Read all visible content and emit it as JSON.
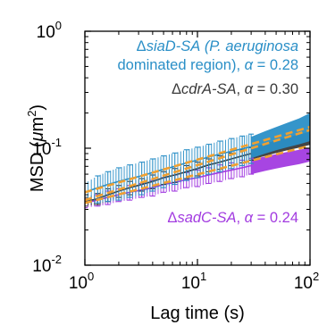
{
  "chart_data": {
    "type": "line",
    "x_scale": "log",
    "y_scale": "log",
    "xlim": [
      1,
      100
    ],
    "ylim": [
      0.01,
      1
    ],
    "xlabel": "Lag time (s)",
    "ylabel": "MSD (μm²)",
    "ylabel_parts": {
      "text": "MSD (",
      "mu": "μ",
      "unit": "m",
      "exp": "2",
      "close": ")"
    },
    "x_ticks": [
      {
        "value": 1,
        "base": "10",
        "exp": "0"
      },
      {
        "value": 10,
        "base": "10",
        "exp": "1"
      },
      {
        "value": 100,
        "base": "10",
        "exp": "2"
      }
    ],
    "y_ticks": [
      {
        "value": 0.01,
        "base": "10",
        "exp": "-2"
      },
      {
        "value": 0.1,
        "base": "10",
        "exp": "-1"
      },
      {
        "value": 1,
        "base": "10",
        "exp": "0"
      }
    ],
    "grid": false,
    "series": [
      {
        "name": "ΔsiaD-SA (P. aeruginosa dominated region)",
        "alpha": "α = 0.28",
        "color": "#2a8fc7",
        "fit_color": "#f0a030",
        "x": [
          1.0,
          1.3,
          1.6,
          2.0,
          2.5,
          3.2,
          4.0,
          5.0,
          6.3,
          8.0,
          10.0,
          12.6,
          15.8,
          20.0,
          25.0,
          30.0
        ],
        "y": [
          0.042,
          0.046,
          0.049,
          0.052,
          0.055,
          0.058,
          0.062,
          0.066,
          0.07,
          0.075,
          0.079,
          0.084,
          0.089,
          0.094,
          0.099,
          0.103
        ],
        "err": [
          0.008,
          0.012,
          0.014,
          0.016,
          0.017,
          0.018,
          0.019,
          0.02,
          0.021,
          0.022,
          0.023,
          0.024,
          0.026,
          0.027,
          0.028,
          0.029
        ],
        "band_x": [
          30,
          40,
          50,
          63,
          80,
          100
        ],
        "band_lo": [
          0.082,
          0.09,
          0.096,
          0.102,
          0.108,
          0.115
        ],
        "band_hi": [
          0.125,
          0.14,
          0.152,
          0.165,
          0.18,
          0.2
        ],
        "fit_x": [
          1,
          100
        ],
        "fit_y": [
          0.042,
          0.152
        ]
      },
      {
        "name": "ΔcdrA-SA",
        "alpha": "α = 0.30",
        "color": "#3a3a3a",
        "fit_color": "#f0a030",
        "x": [
          1.0,
          1.3,
          1.6,
          2.0,
          2.5,
          3.2,
          4.0,
          5.0,
          6.3,
          8.0,
          10.0,
          12.6,
          15.8,
          20.0,
          25.0,
          30.0
        ],
        "y": [
          0.035,
          0.037,
          0.04,
          0.043,
          0.046,
          0.049,
          0.052,
          0.056,
          0.059,
          0.063,
          0.067,
          0.072,
          0.076,
          0.081,
          0.086,
          0.09
        ],
        "err": [
          0.003,
          0.004,
          0.005,
          0.005,
          0.006,
          0.006,
          0.007,
          0.007,
          0.008,
          0.008,
          0.009,
          0.009,
          0.01,
          0.01,
          0.011,
          0.011
        ],
        "band_x": [
          30,
          40,
          50,
          63,
          80,
          100
        ],
        "band_lo": [
          0.08,
          0.086,
          0.091,
          0.096,
          0.101,
          0.107
        ],
        "band_hi": [
          0.102,
          0.11,
          0.117,
          0.124,
          0.131,
          0.139
        ],
        "fit_x": [
          1,
          100
        ],
        "fit_y": [
          0.036,
          0.143
        ]
      },
      {
        "name": "ΔsadC-SA",
        "alpha": "α = 0.24",
        "color": "#a23be0",
        "fit_color": "#f0a030",
        "x": [
          1.0,
          1.3,
          1.6,
          2.0,
          2.5,
          3.2,
          4.0,
          5.0,
          6.3,
          8.0,
          10.0,
          12.6,
          15.8,
          20.0,
          25.0,
          30.0
        ],
        "y": [
          0.034,
          0.036,
          0.038,
          0.04,
          0.042,
          0.044,
          0.046,
          0.049,
          0.051,
          0.054,
          0.056,
          0.059,
          0.062,
          0.065,
          0.068,
          0.071
        ],
        "err": [
          0.003,
          0.004,
          0.005,
          0.005,
          0.006,
          0.006,
          0.007,
          0.007,
          0.008,
          0.008,
          0.009,
          0.009,
          0.01,
          0.01,
          0.011,
          0.011
        ],
        "band_x": [
          30,
          40,
          50,
          63,
          80,
          100
        ],
        "band_lo": [
          0.06,
          0.064,
          0.067,
          0.07,
          0.073,
          0.077
        ],
        "band_hi": [
          0.08,
          0.085,
          0.089,
          0.093,
          0.097,
          0.101
        ],
        "fit_x": [
          1,
          100
        ],
        "fit_y": [
          0.034,
          0.105
        ]
      }
    ],
    "annotations": [
      {
        "id": "siad",
        "color": "#2a8fc7",
        "line1_delta": "Δ",
        "line1_name": "siaD-SA",
        "line1_species": "(P. aeruginosa",
        "line2": "dominated region), ",
        "alpha_sym": "α",
        "alpha_val": " = 0.28"
      },
      {
        "id": "cdra",
        "color": "#3a3a3a",
        "delta": "Δ",
        "name": "cdrA-SA",
        "sep": ", ",
        "alpha_sym": "α",
        "alpha_val": " = 0.30"
      },
      {
        "id": "sadc",
        "color": "#a23be0",
        "delta": "Δ",
        "name": "sadC-SA",
        "sep": ", ",
        "alpha_sym": "α",
        "alpha_val": " = 0.24"
      }
    ]
  }
}
